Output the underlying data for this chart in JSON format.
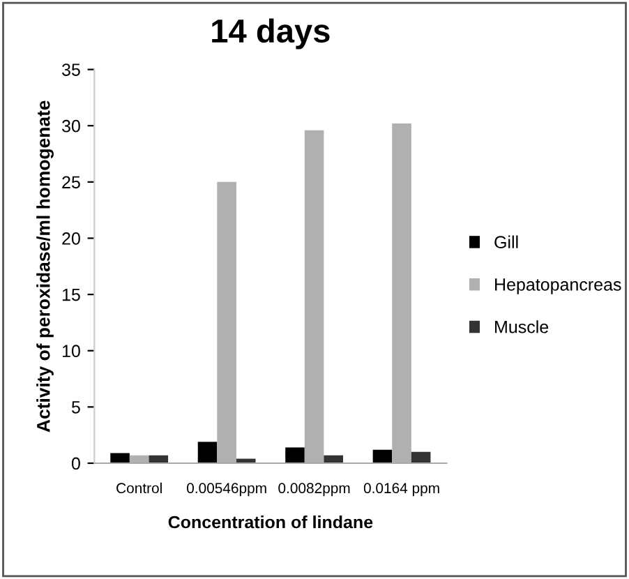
{
  "chart_data": {
    "type": "bar",
    "title": "14 days",
    "xlabel": "Concentration of lindane",
    "ylabel": "Activity of peroxidase/ml homogenate",
    "categories": [
      "Control",
      "0.00546ppm",
      "0.0082ppm",
      "0.0164 ppm"
    ],
    "series": [
      {
        "name": "Gill",
        "color": "#000000",
        "values": [
          0.9,
          1.9,
          1.4,
          1.2
        ]
      },
      {
        "name": "Hepatopancreas",
        "color": "#b0b0b0",
        "values": [
          0.7,
          25,
          29.6,
          30.2
        ]
      },
      {
        "name": "Muscle",
        "color": "#333333",
        "values": [
          0.7,
          0.4,
          0.7,
          1.0
        ]
      }
    ],
    "ylim": [
      0,
      35
    ],
    "yticks": [
      0,
      5,
      10,
      15,
      20,
      25,
      30,
      35
    ],
    "legend": "right",
    "grid": false
  }
}
